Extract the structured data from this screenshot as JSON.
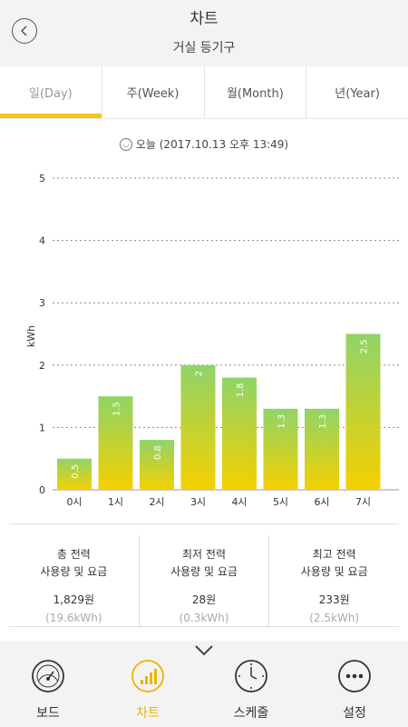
{
  "header": {
    "title": "차트",
    "subtitle": "거실 등기구"
  },
  "tabs": [
    {
      "label": "일(Day)",
      "active": true
    },
    {
      "label": "주(Week)",
      "active": false
    },
    {
      "label": "월(Month)",
      "active": false
    },
    {
      "label": "년(Year)",
      "active": false
    }
  ],
  "date_text": "오늘 (2017.10.13 오후 13:49)",
  "chart_data": {
    "type": "bar",
    "ylabel": "kWh",
    "ylim": [
      0,
      5
    ],
    "yticks": [
      0,
      1,
      2,
      3,
      4,
      5
    ],
    "grid": true,
    "categories": [
      "0시",
      "1시",
      "2시",
      "3시",
      "4시",
      "5시",
      "6시",
      "7시"
    ],
    "values": [
      0.5,
      1.5,
      0.8,
      2,
      1.8,
      1.3,
      1.3,
      2.5
    ],
    "colors": {
      "top": "#8fd468",
      "bottom": "#f5d000"
    }
  },
  "summary": [
    {
      "label_line1": "총 전력",
      "label_line2": "사용량 및 요금",
      "value": "1,829원",
      "kwh": "(19.6kWh)"
    },
    {
      "label_line1": "최저 전력",
      "label_line2": "사용량 및 요금",
      "value": "28원",
      "kwh": "(0.3kWh)"
    },
    {
      "label_line1": "최고 전력",
      "label_line2": "사용량 및 요금",
      "value": "233원",
      "kwh": "(2.5kWh)"
    }
  ],
  "bottom_nav": [
    {
      "label": "보드",
      "icon": "gauge-icon",
      "active": false
    },
    {
      "label": "차트",
      "icon": "bar-chart-icon",
      "active": true
    },
    {
      "label": "스케줄",
      "icon": "clock-icon",
      "active": false
    },
    {
      "label": "설정",
      "icon": "more-icon",
      "active": false
    }
  ],
  "accent_color": "#f5c518"
}
